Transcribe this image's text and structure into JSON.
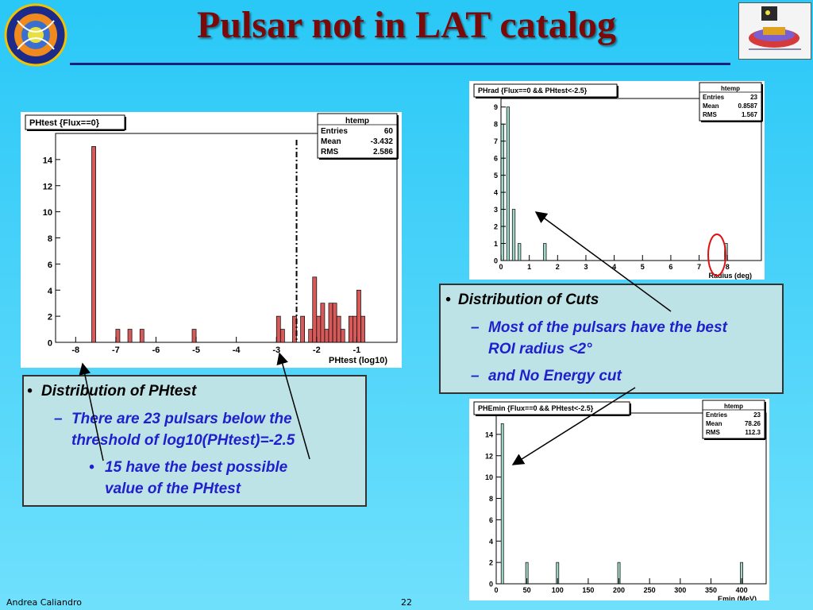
{
  "slide": {
    "title": "Pulsar not in LAT catalog",
    "footer_author": "Andrea Caliandro",
    "footer_page": "22",
    "title_color": "#7a0a0a",
    "rule_color": "#1a1f7a"
  },
  "text_boxes": {
    "cuts": {
      "bullet": "•",
      "heading": "Distribution of Cuts",
      "dash1": "–",
      "item1_line1": "Most of the pulsars have the best",
      "item1_line2": "ROI radius <2°",
      "dash2": "–",
      "item2": "and No Energy cut"
    },
    "phtest": {
      "bullet": "•",
      "heading": "Distribution of PHtest",
      "dash1": "–",
      "item1_line1": "There are 23 pulsars below the",
      "item1_line2": "threshold of log10(PHtest)=-2.5",
      "bullet2": "•",
      "item2_line1": "15 have the best possible",
      "item2_line2": "value of the PHtest"
    }
  },
  "chart_data": [
    {
      "id": "phtest",
      "type": "bar",
      "title": "PHtest {Flux==0}",
      "xlabel": "PHtest (log10)",
      "ylabel": "",
      "xlim": [
        -8.5,
        0
      ],
      "ylim": [
        0,
        16
      ],
      "xticks": [
        -8,
        -7,
        -6,
        -5,
        -4,
        -3,
        -2,
        -1
      ],
      "xticklabels": [
        "-8",
        "-7",
        "-6",
        "-5",
        "-4",
        "-3",
        "-2",
        "-1"
      ],
      "yticks": [
        0,
        2,
        4,
        6,
        8,
        10,
        12,
        14
      ],
      "bin_width": 0.1,
      "bar_color": "#d65a5a",
      "cut_line_x": -2.5,
      "bins": [
        {
          "x": -7.55,
          "y": 15
        },
        {
          "x": -6.95,
          "y": 1
        },
        {
          "x": -6.65,
          "y": 1
        },
        {
          "x": -6.35,
          "y": 1
        },
        {
          "x": -5.05,
          "y": 1
        },
        {
          "x": -2.95,
          "y": 2
        },
        {
          "x": -2.85,
          "y": 1
        },
        {
          "x": -2.55,
          "y": 2
        },
        {
          "x": -2.35,
          "y": 2
        },
        {
          "x": -2.15,
          "y": 1
        },
        {
          "x": -2.05,
          "y": 5
        },
        {
          "x": -1.95,
          "y": 2
        },
        {
          "x": -1.85,
          "y": 3
        },
        {
          "x": -1.75,
          "y": 1
        },
        {
          "x": -1.65,
          "y": 3
        },
        {
          "x": -1.55,
          "y": 3
        },
        {
          "x": -1.45,
          "y": 2
        },
        {
          "x": -1.35,
          "y": 1
        },
        {
          "x": -1.15,
          "y": 2
        },
        {
          "x": -1.05,
          "y": 2
        },
        {
          "x": -0.95,
          "y": 4
        },
        {
          "x": -0.85,
          "y": 2
        }
      ],
      "stats": {
        "name": "htemp",
        "rows": [
          [
            "Entries",
            "60"
          ],
          [
            "Mean",
            "-3.432"
          ],
          [
            "RMS",
            "2.586"
          ]
        ]
      }
    },
    {
      "id": "phrad",
      "type": "bar",
      "title": "PHrad {Flux==0 && PHtest<-2.5}",
      "xlabel": "Radius (deg)",
      "ylabel": "",
      "xlim": [
        0,
        9.2
      ],
      "ylim": [
        0,
        9.5
      ],
      "xticks": [
        0,
        1,
        2,
        3,
        4,
        5,
        6,
        7,
        8
      ],
      "xticklabels": [
        "0",
        "1",
        "2",
        "3",
        "4",
        "5",
        "6",
        "7",
        "8"
      ],
      "yticks": [
        0,
        1,
        2,
        3,
        4,
        5,
        6,
        7,
        8,
        9
      ],
      "bin_width": 0.1,
      "bar_color": "#9fd6c8",
      "bins": [
        {
          "x": 0.05,
          "y": 8
        },
        {
          "x": 0.25,
          "y": 9
        },
        {
          "x": 0.45,
          "y": 3
        },
        {
          "x": 0.65,
          "y": 1
        },
        {
          "x": 1.55,
          "y": 1
        },
        {
          "x": 7.95,
          "y": 1
        }
      ],
      "stats": {
        "name": "htemp",
        "rows": [
          [
            "Entries",
            "23"
          ],
          [
            "Mean",
            "0.8587"
          ],
          [
            "RMS",
            "1.567"
          ]
        ]
      }
    },
    {
      "id": "phemin",
      "type": "bar",
      "title": "PHEmin {Flux==0 && PHtest<-2.5}",
      "xlabel": "Emin (MeV)",
      "ylabel": "",
      "xlim": [
        0,
        440
      ],
      "ylim": [
        0,
        16
      ],
      "xticks": [
        0,
        50,
        100,
        150,
        200,
        250,
        300,
        350,
        400
      ],
      "xticklabels": [
        "0",
        "50",
        "100",
        "150",
        "200",
        "250",
        "300",
        "350",
        "400"
      ],
      "yticks": [
        0,
        2,
        4,
        6,
        8,
        10,
        12,
        14
      ],
      "bin_width": 4,
      "bar_color": "#9fd6c8",
      "bins": [
        {
          "x": 10,
          "y": 15
        },
        {
          "x": 50,
          "y": 2
        },
        {
          "x": 100,
          "y": 2
        },
        {
          "x": 200,
          "y": 2
        },
        {
          "x": 400,
          "y": 2
        }
      ],
      "stats": {
        "name": "htemp",
        "rows": [
          [
            "Entries",
            "23"
          ],
          [
            "Mean",
            "78.26"
          ],
          [
            "RMS",
            "112.3"
          ]
        ]
      }
    }
  ]
}
